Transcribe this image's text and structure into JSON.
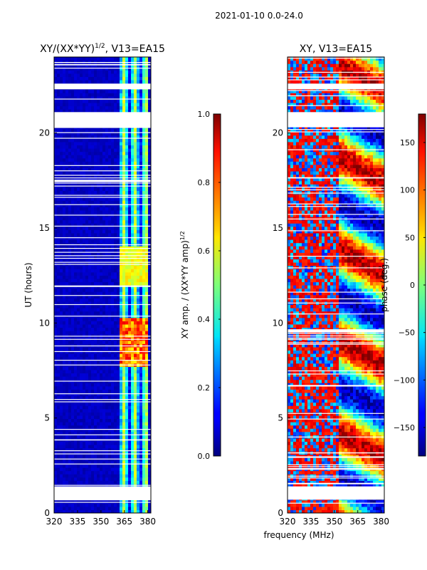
{
  "figure_title": "2021-01-10 0.0-24.0",
  "shared_xlabel": "frequency (MHz)",
  "chart_data": [
    {
      "type": "heatmap",
      "title": "XY/(XX*YY)^1/2, V13=EA15",
      "title_main": "XY/(XX*YY)",
      "title_sup": "1/2",
      "title_tail": ", V13=EA15",
      "xlabel": "frequency (MHz)",
      "ylabel": "UT (hours)",
      "xlim": [
        320,
        382
      ],
      "ylim": [
        0,
        24
      ],
      "xticks": [
        320,
        335,
        350,
        365,
        380
      ],
      "yticks": [
        0,
        5,
        10,
        15,
        20
      ],
      "colorbar": {
        "label_main": "XY amp. / (XX*YY amp)",
        "label_sup": "1/2",
        "range": [
          0,
          1
        ],
        "ticks": [
          "0.0",
          "0.2",
          "0.4",
          "0.6",
          "0.8",
          "1.0"
        ],
        "tick_values": [
          0,
          0.2,
          0.4,
          0.6,
          0.8,
          1.0
        ]
      },
      "data_gaps_hours": [
        [
          0.7,
          1.4
        ],
        [
          20.3,
          21.1
        ],
        [
          22.3,
          22.6
        ]
      ],
      "active_band_mhz": [
        362,
        380
      ],
      "high_amplitude_window_hours": [
        7.8,
        10.2
      ]
    },
    {
      "type": "heatmap",
      "title": "XY, V13=EA15",
      "xlabel": "frequency (MHz)",
      "ylabel": "",
      "xlim": [
        320,
        382
      ],
      "ylim": [
        0,
        24
      ],
      "xticks": [
        320,
        335,
        350,
        365,
        380
      ],
      "yticks": [
        0,
        5,
        10,
        15,
        20
      ],
      "colorbar": {
        "label_main": "phase (deg.)",
        "range": [
          -180,
          180
        ],
        "ticks": [
          "−150",
          "−100",
          "−50",
          "0",
          "50",
          "100",
          "150"
        ],
        "tick_values": [
          -150,
          -100,
          -50,
          0,
          50,
          100,
          150
        ]
      },
      "data_gaps_hours": [
        [
          0.7,
          1.4
        ],
        [
          20.3,
          21.1
        ],
        [
          22.3,
          22.6
        ]
      ]
    }
  ]
}
